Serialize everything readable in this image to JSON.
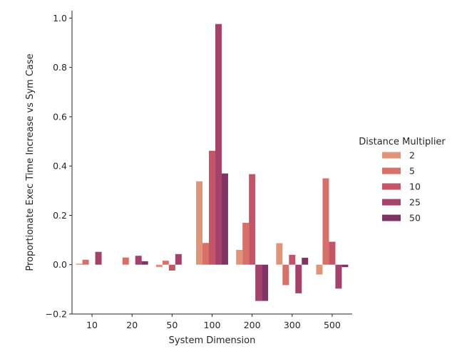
{
  "chart_data": {
    "type": "bar",
    "title": "",
    "xlabel": "System Dimension",
    "ylabel": "Proportionate Exec Time Increase vs Sym Case",
    "categories": [
      "10",
      "20",
      "50",
      "100",
      "200",
      "300",
      "500"
    ],
    "ylim": [
      -0.2,
      1.03
    ],
    "yticks": [
      -0.2,
      0.0,
      0.2,
      0.4,
      0.6,
      0.8,
      1.0
    ],
    "ytick_labels": [
      "−0.2",
      "0.0",
      "0.2",
      "0.4",
      "0.6",
      "0.8",
      "1.0"
    ],
    "grid": false,
    "legend": {
      "title": "Distance Multiplier",
      "placement": "right"
    },
    "series": [
      {
        "name": "2",
        "color": "#e0957a",
        "values": [
          0.004,
          0.0,
          -0.01,
          0.338,
          0.06,
          0.087,
          -0.04
        ]
      },
      {
        "name": "5",
        "color": "#d8706a",
        "values": [
          0.02,
          0.029,
          0.016,
          0.088,
          0.17,
          -0.083,
          0.35
        ]
      },
      {
        "name": "10",
        "color": "#c45467",
        "values": [
          0.0,
          0.0,
          -0.024,
          0.462,
          0.367,
          0.04,
          0.093
        ]
      },
      {
        "name": "25",
        "color": "#a3426a",
        "values": [
          0.052,
          0.036,
          0.043,
          0.976,
          -0.147,
          -0.116,
          -0.097
        ]
      },
      {
        "name": "50",
        "color": "#7e3565",
        "values": [
          0.0,
          0.014,
          0.0,
          0.37,
          -0.147,
          0.028,
          -0.01
        ]
      }
    ]
  }
}
